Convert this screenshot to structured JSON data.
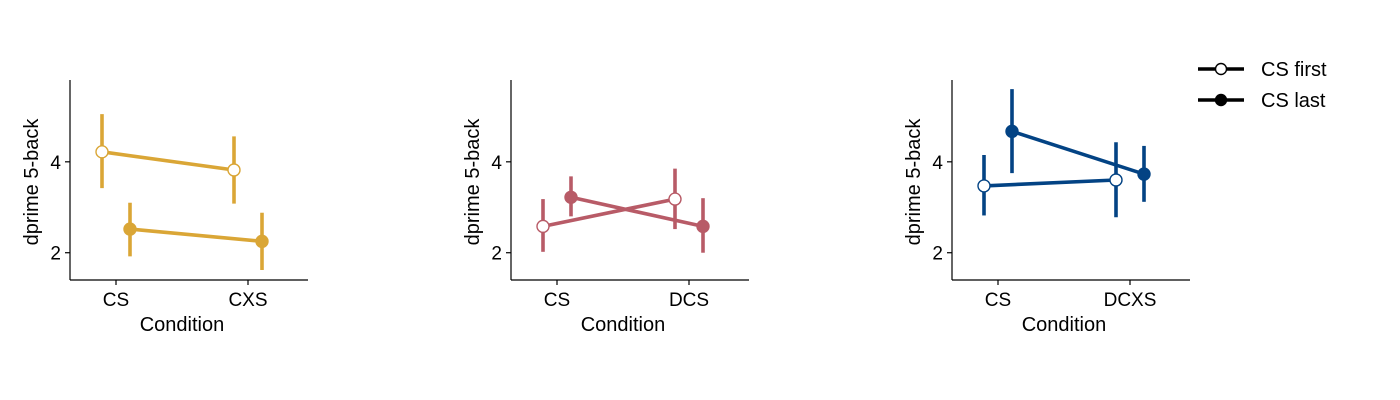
{
  "chart_data": [
    {
      "type": "line",
      "categories": [
        "CS",
        "CXS"
      ],
      "xlabel": "Condition",
      "ylabel": "dprime 5-back",
      "ylim": [
        1.4,
        5.8
      ],
      "yticks": [
        2,
        4
      ],
      "color": "#DAA636",
      "series": [
        {
          "name": "CS first",
          "marker": "open",
          "values": [
            4.22,
            3.82
          ],
          "err_low": [
            3.42,
            3.08
          ],
          "err_high": [
            5.05,
            4.56
          ]
        },
        {
          "name": "CS last",
          "marker": "filled",
          "values": [
            2.52,
            2.25
          ],
          "err_low": [
            1.92,
            1.62
          ],
          "err_high": [
            3.1,
            2.88
          ]
        }
      ]
    },
    {
      "type": "line",
      "categories": [
        "CS",
        "DCS"
      ],
      "xlabel": "Condition",
      "ylabel": "dprime 5-back",
      "ylim": [
        1.4,
        5.8
      ],
      "yticks": [
        2,
        4
      ],
      "color": "#B85B67",
      "series": [
        {
          "name": "CS first",
          "marker": "open",
          "values": [
            2.58,
            3.18
          ],
          "err_low": [
            2.02,
            2.52
          ],
          "err_high": [
            3.18,
            3.85
          ]
        },
        {
          "name": "CS last",
          "marker": "filled",
          "values": [
            3.22,
            2.58
          ],
          "err_low": [
            2.8,
            2.0
          ],
          "err_high": [
            3.68,
            3.2
          ]
        }
      ]
    },
    {
      "type": "line",
      "categories": [
        "CS",
        "DCXS"
      ],
      "xlabel": "Condition",
      "ylabel": "dprime 5-back",
      "ylim": [
        1.4,
        5.8
      ],
      "yticks": [
        2,
        4
      ],
      "color": "#034384",
      "series": [
        {
          "name": "CS first",
          "marker": "open",
          "values": [
            3.47,
            3.6
          ],
          "err_low": [
            2.82,
            2.78
          ],
          "err_high": [
            4.15,
            4.43
          ]
        },
        {
          "name": "CS last",
          "marker": "filled",
          "values": [
            4.67,
            3.73
          ],
          "err_low": [
            3.75,
            3.12
          ],
          "err_high": [
            5.6,
            4.35
          ]
        }
      ]
    }
  ],
  "legend": {
    "placement": "top-right",
    "color": "#000000",
    "items": [
      {
        "label": "CS first",
        "marker": "open"
      },
      {
        "label": "CS last",
        "marker": "filled"
      }
    ]
  }
}
